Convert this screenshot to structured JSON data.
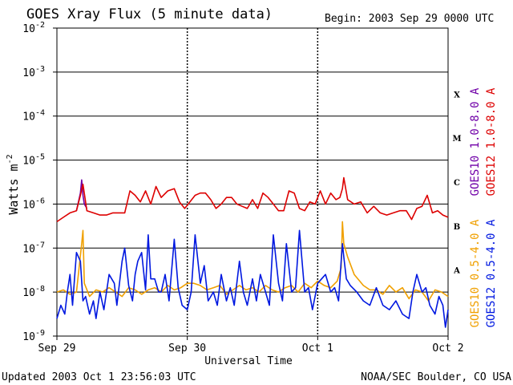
{
  "chart_data": {
    "type": "line",
    "title": "GOES Xray Flux (5 minute data)",
    "begin_label": "Begin:  2003 Sep 29 0000 UTC",
    "xlabel": "Universal Time",
    "ylabel": "Watts m",
    "ylabel_exp": "-2",
    "x_range_days": [
      0,
      3
    ],
    "x_ticks": [
      {
        "day": 0,
        "label": "Sep 29"
      },
      {
        "day": 1,
        "label": "Sep 30"
      },
      {
        "day": 2,
        "label": "Oct 1"
      },
      {
        "day": 3,
        "label": "Oct 2"
      }
    ],
    "y_scale": "log",
    "y_range_exp": [
      -9,
      -2
    ],
    "y_ticks": [
      {
        "exp": -2,
        "base": "10",
        "power": "-2"
      },
      {
        "exp": -3,
        "base": "10",
        "power": "-3"
      },
      {
        "exp": -4,
        "base": "10",
        "power": "-4"
      },
      {
        "exp": -5,
        "base": "10",
        "power": "-5"
      },
      {
        "exp": -6,
        "base": "10",
        "power": "-6"
      },
      {
        "exp": -7,
        "base": "10",
        "power": "-7"
      },
      {
        "exp": -8,
        "base": "10",
        "power": "-8"
      },
      {
        "exp": -9,
        "base": "10",
        "power": "-9"
      }
    ],
    "flare_classes": [
      {
        "label": "X",
        "exp": -3.5
      },
      {
        "label": "M",
        "exp": -4.5
      },
      {
        "label": "C",
        "exp": -5.5
      },
      {
        "label": "B",
        "exp": -6.5
      },
      {
        "label": "A",
        "exp": -7.5
      }
    ],
    "legend_long": [
      {
        "label": "GOES10 1.0-8.0 A",
        "color": "#7000a8"
      },
      {
        "label": "GOES12 1.0-8.0 A",
        "color": "#dd0000"
      }
    ],
    "legend_short": [
      {
        "label": "GOES10 0.5-4.0 A",
        "color": "#f0a000"
      },
      {
        "label": "GOES12 0.5-4.0 A",
        "color": "#0018e0"
      }
    ],
    "series": [
      {
        "name": "GOES10 1.0-8.0 A",
        "color": "#7000a8",
        "x": [
          0.15,
          0.18,
          0.19,
          0.2,
          0.21,
          0.23
        ],
        "y": [
          -6.15,
          -5.75,
          -5.45,
          -5.8,
          -6.0,
          -6.1
        ]
      },
      {
        "name": "GOES12 1.0-8.0 A",
        "color": "#dd0000",
        "x": [
          0,
          0.05,
          0.1,
          0.15,
          0.18,
          0.2,
          0.23,
          0.28,
          0.33,
          0.38,
          0.43,
          0.48,
          0.52,
          0.56,
          0.6,
          0.64,
          0.68,
          0.72,
          0.76,
          0.8,
          0.85,
          0.9,
          0.94,
          0.98,
          1.02,
          1.06,
          1.1,
          1.14,
          1.18,
          1.22,
          1.26,
          1.3,
          1.34,
          1.38,
          1.42,
          1.46,
          1.5,
          1.54,
          1.58,
          1.62,
          1.66,
          1.7,
          1.74,
          1.78,
          1.82,
          1.86,
          1.9,
          1.94,
          1.98,
          2.02,
          2.06,
          2.1,
          2.14,
          2.17,
          2.19,
          2.2,
          2.23,
          2.28,
          2.33,
          2.38,
          2.43,
          2.48,
          2.53,
          2.58,
          2.63,
          2.68,
          2.72,
          2.76,
          2.8,
          2.84,
          2.88,
          2.92,
          2.96,
          3.0
        ],
        "y": [
          -6.4,
          -6.3,
          -6.2,
          -6.15,
          -5.8,
          -5.55,
          -6.15,
          -6.2,
          -6.25,
          -6.25,
          -6.2,
          -6.2,
          -6.2,
          -5.7,
          -5.8,
          -5.95,
          -5.7,
          -6.0,
          -5.6,
          -5.85,
          -5.7,
          -5.65,
          -5.95,
          -6.1,
          -5.95,
          -5.8,
          -5.75,
          -5.75,
          -5.9,
          -6.1,
          -6.0,
          -5.85,
          -5.85,
          -6.0,
          -6.05,
          -6.1,
          -5.9,
          -6.1,
          -5.75,
          -5.85,
          -6.0,
          -6.15,
          -6.15,
          -5.7,
          -5.75,
          -6.1,
          -6.15,
          -5.95,
          -6.0,
          -5.7,
          -6.0,
          -5.75,
          -5.9,
          -5.85,
          -5.65,
          -5.4,
          -5.9,
          -6.0,
          -5.95,
          -6.2,
          -6.05,
          -6.2,
          -6.25,
          -6.2,
          -6.15,
          -6.15,
          -6.35,
          -6.1,
          -6.05,
          -5.8,
          -6.2,
          -6.15,
          -6.25,
          -6.3
        ]
      },
      {
        "name": "GOES10 0.5-4.0 A",
        "color": "#f0a000",
        "x": [
          0,
          0.05,
          0.1,
          0.15,
          0.19,
          0.2,
          0.21,
          0.25,
          0.3,
          0.35,
          0.4,
          0.45,
          0.5,
          0.55,
          0.6,
          0.65,
          0.7,
          0.75,
          0.8,
          0.85,
          0.9,
          0.95,
          1.0,
          1.05,
          1.1,
          1.15,
          1.2,
          1.25,
          1.3,
          1.35,
          1.4,
          1.45,
          1.5,
          1.55,
          1.6,
          1.65,
          1.7,
          1.75,
          1.8,
          1.85,
          1.9,
          1.95,
          2.0,
          2.05,
          2.1,
          2.15,
          2.18,
          2.19,
          2.2,
          2.23,
          2.28,
          2.35,
          2.4,
          2.45,
          2.5,
          2.55,
          2.6,
          2.65,
          2.7,
          2.75,
          2.8,
          2.85,
          2.9,
          2.95,
          3.0
        ],
        "y": [
          -8.0,
          -7.95,
          -8.05,
          -8.0,
          -6.9,
          -6.6,
          -7.8,
          -8.1,
          -7.95,
          -8.0,
          -7.9,
          -8.0,
          -8.1,
          -7.9,
          -7.95,
          -8.05,
          -7.95,
          -7.9,
          -8.0,
          -7.85,
          -7.95,
          -7.9,
          -7.8,
          -7.8,
          -7.85,
          -7.95,
          -7.9,
          -7.85,
          -8.05,
          -7.95,
          -7.85,
          -7.95,
          -7.9,
          -8.0,
          -7.85,
          -7.95,
          -8.0,
          -7.9,
          -7.85,
          -8.0,
          -7.8,
          -7.9,
          -7.75,
          -7.85,
          -7.9,
          -7.75,
          -7.45,
          -6.4,
          -6.9,
          -7.2,
          -7.6,
          -7.85,
          -7.95,
          -7.95,
          -8.05,
          -7.85,
          -8.0,
          -7.9,
          -8.15,
          -7.95,
          -8.0,
          -8.2,
          -7.95,
          -8.0,
          -8.1
        ]
      },
      {
        "name": "GOES12 0.5-4.0 A",
        "color": "#0018e0",
        "x": [
          0,
          0.03,
          0.06,
          0.08,
          0.1,
          0.12,
          0.15,
          0.18,
          0.2,
          0.22,
          0.25,
          0.28,
          0.3,
          0.33,
          0.36,
          0.4,
          0.44,
          0.46,
          0.5,
          0.52,
          0.55,
          0.58,
          0.6,
          0.62,
          0.65,
          0.68,
          0.7,
          0.72,
          0.75,
          0.78,
          0.8,
          0.83,
          0.86,
          0.9,
          0.93,
          0.96,
          1.0,
          1.03,
          1.06,
          1.1,
          1.13,
          1.16,
          1.2,
          1.23,
          1.26,
          1.3,
          1.33,
          1.36,
          1.4,
          1.43,
          1.46,
          1.5,
          1.53,
          1.56,
          1.6,
          1.63,
          1.66,
          1.7,
          1.73,
          1.76,
          1.8,
          1.83,
          1.86,
          1.9,
          1.93,
          1.96,
          2.0,
          2.03,
          2.06,
          2.1,
          2.13,
          2.16,
          2.18,
          2.19,
          2.2,
          2.22,
          2.25,
          2.3,
          2.35,
          2.4,
          2.45,
          2.5,
          2.55,
          2.6,
          2.65,
          2.7,
          2.73,
          2.76,
          2.8,
          2.83,
          2.86,
          2.9,
          2.93,
          2.96,
          2.98,
          3.0
        ],
        "y": [
          -8.6,
          -8.3,
          -8.5,
          -8.0,
          -7.6,
          -8.3,
          -7.1,
          -7.3,
          -8.2,
          -8.1,
          -8.5,
          -8.2,
          -8.6,
          -8.0,
          -8.4,
          -7.6,
          -7.8,
          -8.3,
          -7.3,
          -7.0,
          -7.85,
          -8.2,
          -7.6,
          -7.3,
          -7.1,
          -7.95,
          -6.7,
          -7.7,
          -7.7,
          -8.0,
          -8.0,
          -7.6,
          -8.2,
          -6.8,
          -7.9,
          -8.3,
          -8.4,
          -8.0,
          -6.7,
          -7.8,
          -7.4,
          -8.2,
          -8.0,
          -8.3,
          -7.6,
          -8.2,
          -7.9,
          -8.3,
          -7.3,
          -8.0,
          -8.3,
          -7.7,
          -8.2,
          -7.6,
          -8.0,
          -8.3,
          -6.7,
          -7.8,
          -8.2,
          -6.9,
          -8.0,
          -7.9,
          -6.6,
          -8.0,
          -7.9,
          -8.4,
          -7.8,
          -7.7,
          -7.6,
          -8.0,
          -7.9,
          -8.2,
          -7.3,
          -6.9,
          -7.2,
          -7.7,
          -7.85,
          -8.0,
          -8.2,
          -8.3,
          -7.9,
          -8.3,
          -8.4,
          -8.2,
          -8.5,
          -8.6,
          -8.0,
          -7.6,
          -8.0,
          -7.9,
          -8.3,
          -8.5,
          -8.1,
          -8.3,
          -8.8,
          -8.4
        ]
      }
    ]
  },
  "footer": {
    "updated": "Updated 2003 Oct  1 23:56:03 UTC",
    "credit": "NOAA/SEC Boulder, CO USA"
  }
}
